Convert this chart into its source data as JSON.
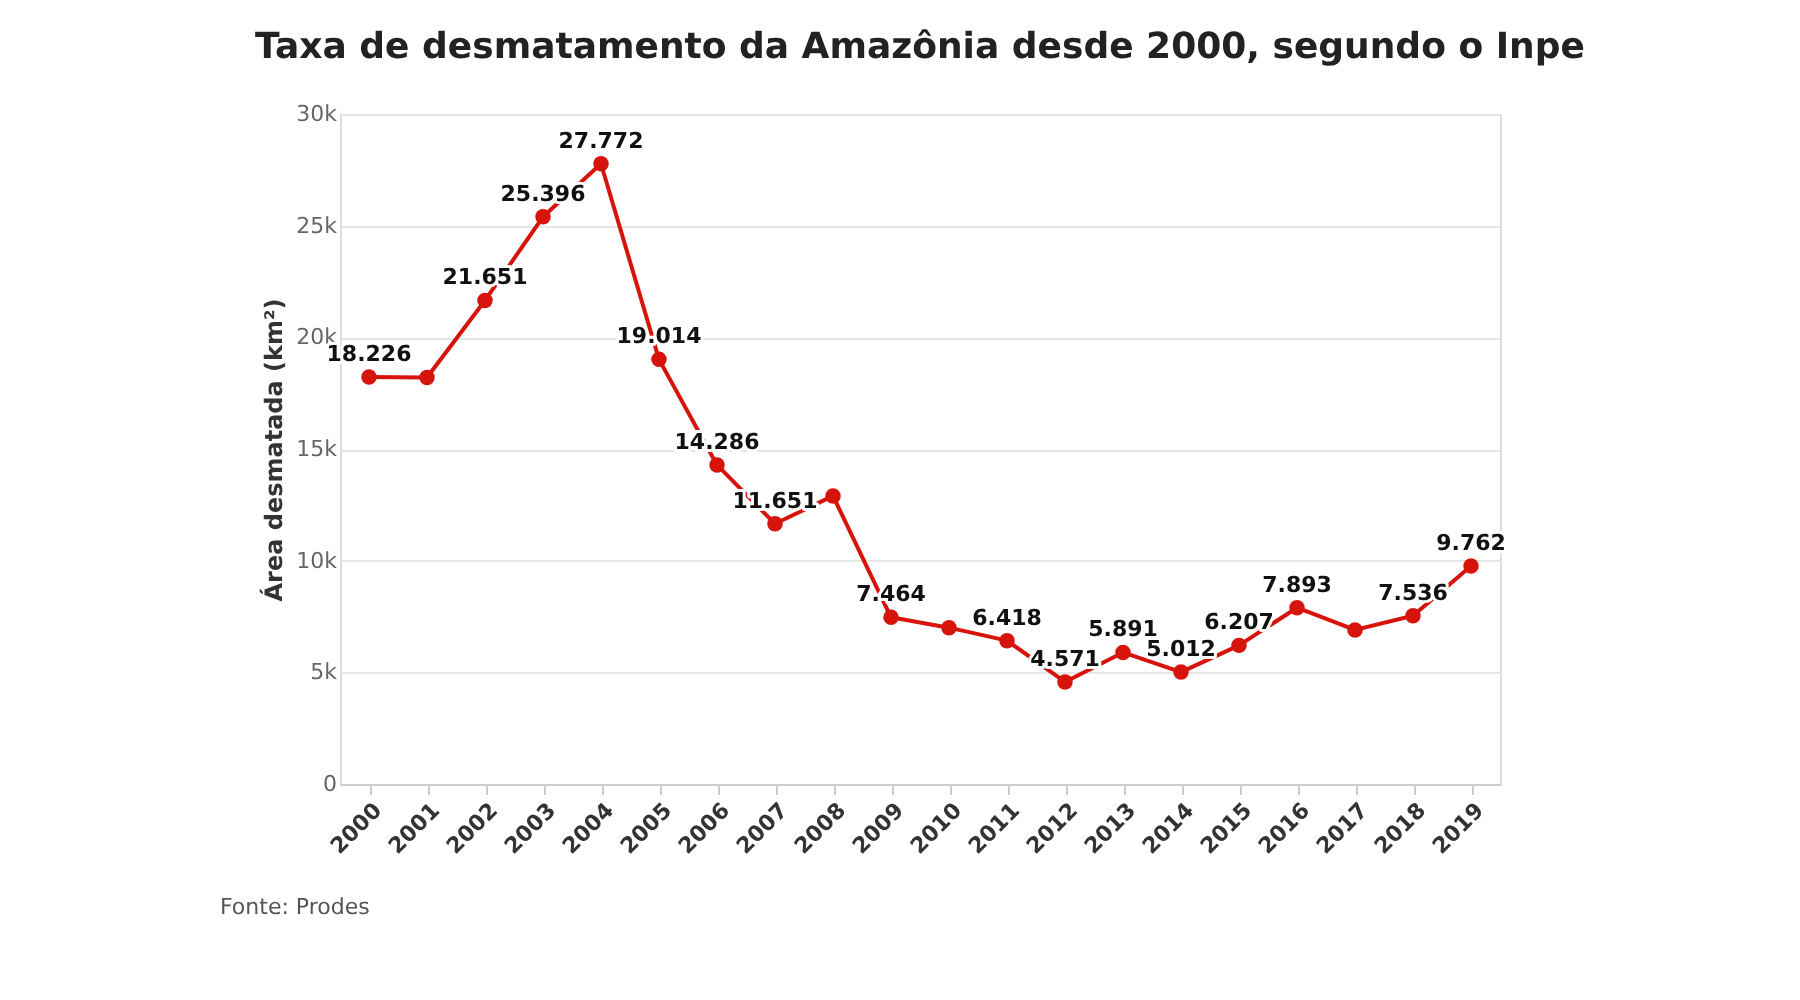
{
  "chart_data": {
    "type": "line",
    "title": "Taxa de desmatamento da Amazônia desde 2000, segundo o Inpe",
    "ylabel": "Área desmatada (km²)",
    "categories": [
      "2000",
      "2001",
      "2002",
      "2003",
      "2004",
      "2005",
      "2006",
      "2007",
      "2008",
      "2009",
      "2010",
      "2011",
      "2012",
      "2013",
      "2014",
      "2015",
      "2016",
      "2017",
      "2018",
      "2019"
    ],
    "series": [
      {
        "color": "#d7140c",
        "values": [
          18226,
          18200,
          21651,
          25396,
          27772,
          19014,
          14286,
          11651,
          12900,
          7464,
          7000,
          6418,
          4571,
          5891,
          5012,
          6207,
          7893,
          6900,
          7536,
          9762
        ],
        "value_labels": [
          "18.226",
          null,
          "21.651",
          "25.396",
          "27.772",
          "19.014",
          "14.286",
          "11.651",
          null,
          "7.464",
          null,
          "6.418",
          "4.571",
          "5.891",
          "5.012",
          "6.207",
          "7.893",
          null,
          "7.536",
          "9.762"
        ]
      }
    ],
    "ylim": [
      0,
      30000
    ],
    "yticks": [
      0,
      {
        "value": 5000,
        "label": "5k"
      },
      {
        "value": 10000,
        "label": "10k"
      },
      {
        "value": 15000,
        "label": "15k"
      },
      {
        "value": 20000,
        "label": "20k"
      },
      {
        "value": 25000,
        "label": "25k"
      },
      {
        "value": 30000,
        "label": "30k"
      }
    ],
    "grid": "y",
    "marker": "circle",
    "line_style": "solid",
    "annotations": [
      "Fonte: Prodes"
    ]
  }
}
